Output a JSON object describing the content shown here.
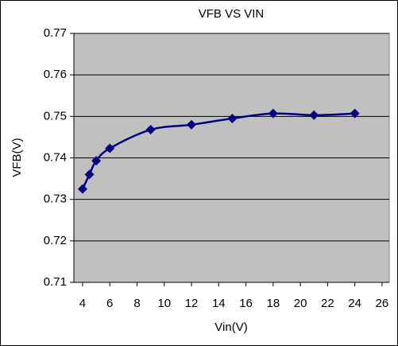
{
  "chart_data": {
    "type": "line",
    "title": "VFB VS VIN",
    "x_label": "Vin(V)",
    "y_label": "VFB(V)",
    "series": [
      {
        "name": "VFB",
        "color": "#000080",
        "x": [
          4,
          4.5,
          5,
          6,
          9,
          12,
          15,
          18,
          21,
          24
        ],
        "values": [
          0.7325,
          0.736,
          0.7393,
          0.7423,
          0.7468,
          0.748,
          0.7495,
          0.7507,
          0.7503,
          0.7507
        ]
      }
    ],
    "xlim": [
      3.36,
      26.53
    ],
    "xticks": [
      4,
      6,
      8,
      10,
      12,
      14,
      16,
      18,
      20,
      22,
      24,
      26
    ],
    "ylim": [
      0.71,
      0.77
    ],
    "yticks": [
      0.71,
      0.72,
      0.73,
      0.74,
      0.75,
      0.76,
      0.77
    ],
    "grid": true,
    "plot_background": "#c0c0c0"
  }
}
